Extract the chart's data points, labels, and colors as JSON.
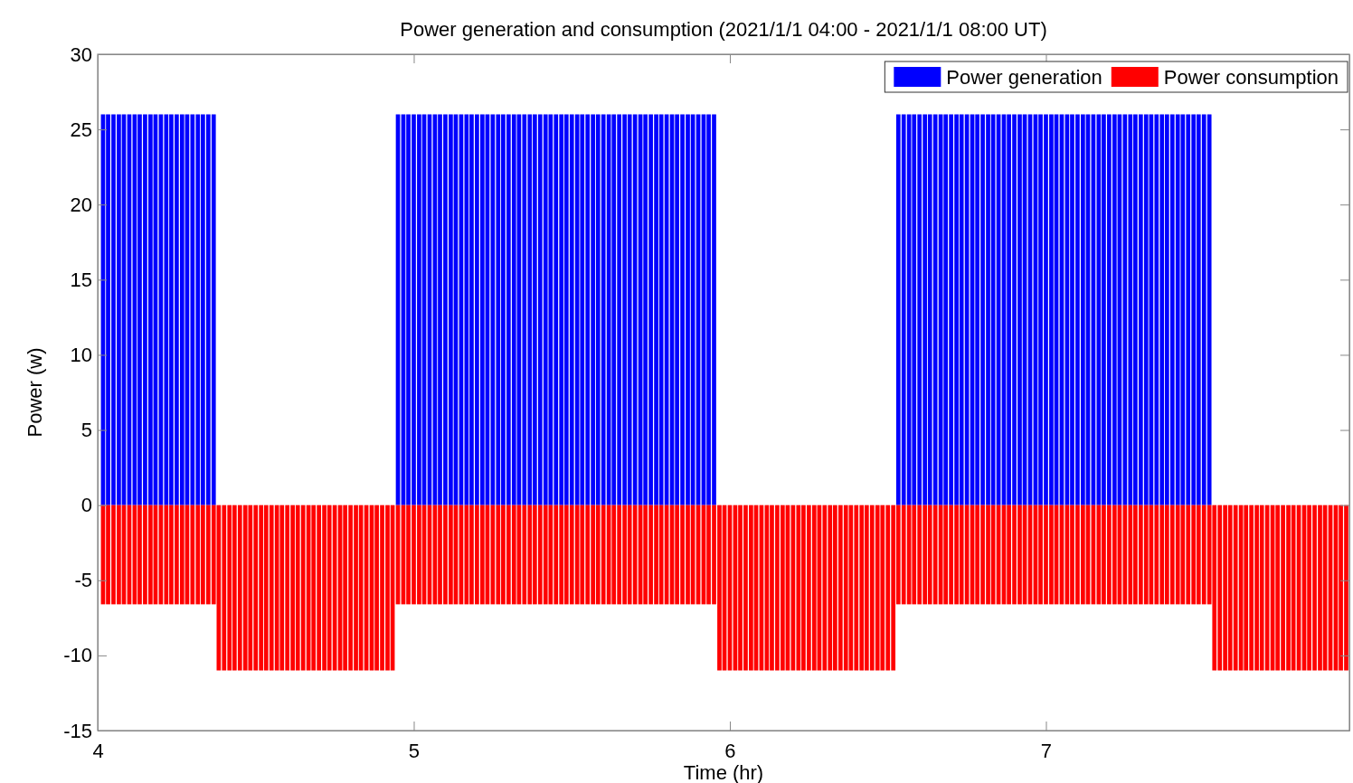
{
  "chart_data": {
    "type": "bar",
    "title": "Power generation and consumption (2021/1/1 04:00 - 2021/1/1 08:00 UT)",
    "xlabel": "Time (hr)",
    "ylabel": "Power (w)",
    "x": [
      4.017,
      4.033,
      4.05,
      4.067,
      4.083,
      4.1,
      4.117,
      4.133,
      4.15,
      4.167,
      4.183,
      4.2,
      4.217,
      4.233,
      4.25,
      4.267,
      4.283,
      4.3,
      4.317,
      4.333,
      4.35,
      4.367,
      4.383,
      4.4,
      4.417,
      4.433,
      4.45,
      4.467,
      4.483,
      4.5,
      4.517,
      4.533,
      4.55,
      4.567,
      4.583,
      4.6,
      4.617,
      4.633,
      4.65,
      4.667,
      4.683,
      4.7,
      4.717,
      4.733,
      4.75,
      4.767,
      4.783,
      4.8,
      4.817,
      4.833,
      4.85,
      4.867,
      4.883,
      4.9,
      4.917,
      4.933,
      4.95,
      4.967,
      4.983,
      5,
      5.017,
      5.033,
      5.05,
      5.067,
      5.083,
      5.1,
      5.117,
      5.133,
      5.15,
      5.167,
      5.183,
      5.2,
      5.217,
      5.233,
      5.25,
      5.267,
      5.283,
      5.3,
      5.317,
      5.333,
      5.35,
      5.367,
      5.383,
      5.4,
      5.417,
      5.433,
      5.45,
      5.467,
      5.483,
      5.5,
      5.517,
      5.533,
      5.55,
      5.567,
      5.583,
      5.6,
      5.617,
      5.633,
      5.65,
      5.667,
      5.683,
      5.7,
      5.717,
      5.733,
      5.75,
      5.767,
      5.783,
      5.8,
      5.817,
      5.833,
      5.85,
      5.867,
      5.883,
      5.9,
      5.917,
      5.933,
      5.95,
      5.967,
      5.983,
      6,
      6.017,
      6.033,
      6.05,
      6.067,
      6.083,
      6.1,
      6.117,
      6.133,
      6.15,
      6.167,
      6.183,
      6.2,
      6.217,
      6.233,
      6.25,
      6.267,
      6.283,
      6.3,
      6.317,
      6.333,
      6.35,
      6.367,
      6.383,
      6.4,
      6.417,
      6.433,
      6.45,
      6.467,
      6.483,
      6.5,
      6.517,
      6.533,
      6.55,
      6.567,
      6.583,
      6.6,
      6.617,
      6.633,
      6.65,
      6.667,
      6.683,
      6.7,
      6.717,
      6.733,
      6.75,
      6.767,
      6.783,
      6.8,
      6.817,
      6.833,
      6.85,
      6.867,
      6.883,
      6.9,
      6.917,
      6.933,
      6.95,
      6.967,
      6.983,
      7,
      7.017,
      7.033,
      7.05,
      7.067,
      7.083,
      7.1,
      7.117,
      7.133,
      7.15,
      7.167,
      7.183,
      7.2,
      7.217,
      7.233,
      7.25,
      7.267,
      7.283,
      7.3,
      7.317,
      7.333,
      7.35,
      7.367,
      7.383,
      7.4,
      7.417,
      7.433,
      7.45,
      7.467,
      7.483,
      7.5,
      7.517,
      7.533,
      7.55,
      7.567,
      7.583,
      7.6,
      7.617,
      7.633,
      7.65,
      7.667,
      7.683,
      7.7,
      7.717,
      7.733,
      7.75,
      7.767,
      7.783,
      7.8,
      7.817,
      7.833,
      7.85,
      7.867,
      7.883,
      7.9,
      7.917,
      7.933,
      7.95
    ],
    "series": [
      {
        "name": "Power generation",
        "color": "#0000ff",
        "values": [
          26,
          26,
          26,
          26,
          26,
          26,
          26,
          26,
          26,
          26,
          26,
          26,
          26,
          26,
          26,
          26,
          26,
          26,
          26,
          26,
          26,
          26,
          null,
          null,
          null,
          null,
          null,
          null,
          null,
          null,
          null,
          null,
          null,
          null,
          null,
          null,
          null,
          null,
          null,
          null,
          null,
          null,
          null,
          null,
          null,
          null,
          null,
          null,
          null,
          null,
          null,
          null,
          null,
          null,
          null,
          null,
          26,
          26,
          26,
          26,
          26,
          26,
          26,
          26,
          26,
          26,
          26,
          26,
          26,
          26,
          26,
          26,
          26,
          26,
          26,
          26,
          26,
          26,
          26,
          26,
          26,
          26,
          26,
          26,
          26,
          26,
          26,
          26,
          26,
          26,
          26,
          26,
          26,
          26,
          26,
          26,
          26,
          26,
          26,
          26,
          26,
          26,
          26,
          26,
          26,
          26,
          26,
          26,
          26,
          26,
          26,
          26,
          26,
          26,
          26,
          26,
          26,
          null,
          null,
          null,
          null,
          null,
          null,
          null,
          null,
          null,
          null,
          null,
          null,
          null,
          null,
          null,
          null,
          null,
          null,
          null,
          null,
          null,
          null,
          null,
          null,
          null,
          null,
          null,
          null,
          null,
          null,
          null,
          null,
          null,
          null,
          26,
          26,
          26,
          26,
          26,
          26,
          26,
          26,
          26,
          26,
          26,
          26,
          26,
          26,
          26,
          26,
          26,
          26,
          26,
          26,
          26,
          26,
          26,
          26,
          26,
          26,
          26,
          26,
          26,
          26,
          26,
          26,
          26,
          26,
          26,
          26,
          26,
          26,
          26,
          26,
          26,
          26,
          26,
          26,
          26,
          26,
          26,
          26,
          26,
          26,
          26,
          26,
          26,
          26,
          26,
          26,
          26,
          26,
          26,
          26,
          null,
          null,
          null,
          null,
          null,
          null,
          null,
          null,
          null,
          null,
          null,
          null,
          null,
          null,
          null,
          null,
          null,
          null,
          null,
          null,
          null,
          null,
          null,
          null,
          null,
          null
        ]
      },
      {
        "name": "Power consumption",
        "color": "#ff0000",
        "values": [
          -6.6,
          -6.6,
          -6.6,
          -6.6,
          -6.6,
          -6.6,
          -6.6,
          -6.6,
          -6.6,
          -6.6,
          -6.6,
          -6.6,
          -6.6,
          -6.6,
          -6.6,
          -6.6,
          -6.6,
          -6.6,
          -6.6,
          -6.6,
          -6.6,
          -6.6,
          -11,
          -11,
          -11,
          -11,
          -11,
          -11,
          -11,
          -11,
          -11,
          -11,
          -11,
          -11,
          -11,
          -11,
          -11,
          -11,
          -11,
          -11,
          -11,
          -11,
          -11,
          -11,
          -11,
          -11,
          -11,
          -11,
          -11,
          -11,
          -11,
          -11,
          -11,
          -11,
          -11,
          -11,
          -6.6,
          -6.6,
          -6.6,
          -6.6,
          -6.6,
          -6.6,
          -6.6,
          -6.6,
          -6.6,
          -6.6,
          -6.6,
          -6.6,
          -6.6,
          -6.6,
          -6.6,
          -6.6,
          -6.6,
          -6.6,
          -6.6,
          -6.6,
          -6.6,
          -6.6,
          -6.6,
          -6.6,
          -6.6,
          -6.6,
          -6.6,
          -6.6,
          -6.6,
          -6.6,
          -6.6,
          -6.6,
          -6.6,
          -6.6,
          -6.6,
          -6.6,
          -6.6,
          -6.6,
          -6.6,
          -6.6,
          -6.6,
          -6.6,
          -6.6,
          -6.6,
          -6.6,
          -6.6,
          -6.6,
          -6.6,
          -6.6,
          -6.6,
          -6.6,
          -6.6,
          -6.6,
          -6.6,
          -6.6,
          -6.6,
          -6.6,
          -6.6,
          -6.6,
          -6.6,
          -6.6,
          -11,
          -11,
          -11,
          -11,
          -11,
          -11,
          -11,
          -11,
          -11,
          -11,
          -11,
          -11,
          -11,
          -11,
          -11,
          -11,
          -11,
          -11,
          -11,
          -11,
          -11,
          -11,
          -11,
          -11,
          -11,
          -11,
          -11,
          -11,
          -11,
          -11,
          -11,
          -11,
          -11,
          -11,
          -6.6,
          -6.6,
          -6.6,
          -6.6,
          -6.6,
          -6.6,
          -6.6,
          -6.6,
          -6.6,
          -6.6,
          -6.6,
          -6.6,
          -6.6,
          -6.6,
          -6.6,
          -6.6,
          -6.6,
          -6.6,
          -6.6,
          -6.6,
          -6.6,
          -6.6,
          -6.6,
          -6.6,
          -6.6,
          -6.6,
          -6.6,
          -6.6,
          -6.6,
          -6.6,
          -6.6,
          -6.6,
          -6.6,
          -6.6,
          -6.6,
          -6.6,
          -6.6,
          -6.6,
          -6.6,
          -6.6,
          -6.6,
          -6.6,
          -6.6,
          -6.6,
          -6.6,
          -6.6,
          -6.6,
          -6.6,
          -6.6,
          -6.6,
          -6.6,
          -6.6,
          -6.6,
          -6.6,
          -6.6,
          -6.6,
          -6.6,
          -6.6,
          -6.6,
          -6.6,
          -11,
          -11,
          -11,
          -11,
          -11,
          -11,
          -11,
          -11,
          -11,
          -11,
          -11,
          -11,
          -11,
          -11,
          -11,
          -11,
          -11,
          -11,
          -11,
          -11,
          -11,
          -11,
          -11,
          -11,
          -11,
          -11
        ]
      }
    ],
    "stacked": true,
    "xlim": [
      4,
      7.96
    ],
    "xticks": [
      4,
      5,
      6,
      7
    ],
    "ylim": [
      -15,
      30
    ],
    "yticks": [
      -15,
      -10,
      -5,
      0,
      5,
      10,
      15,
      20,
      25,
      30
    ],
    "grid": false,
    "legend": "top right"
  }
}
